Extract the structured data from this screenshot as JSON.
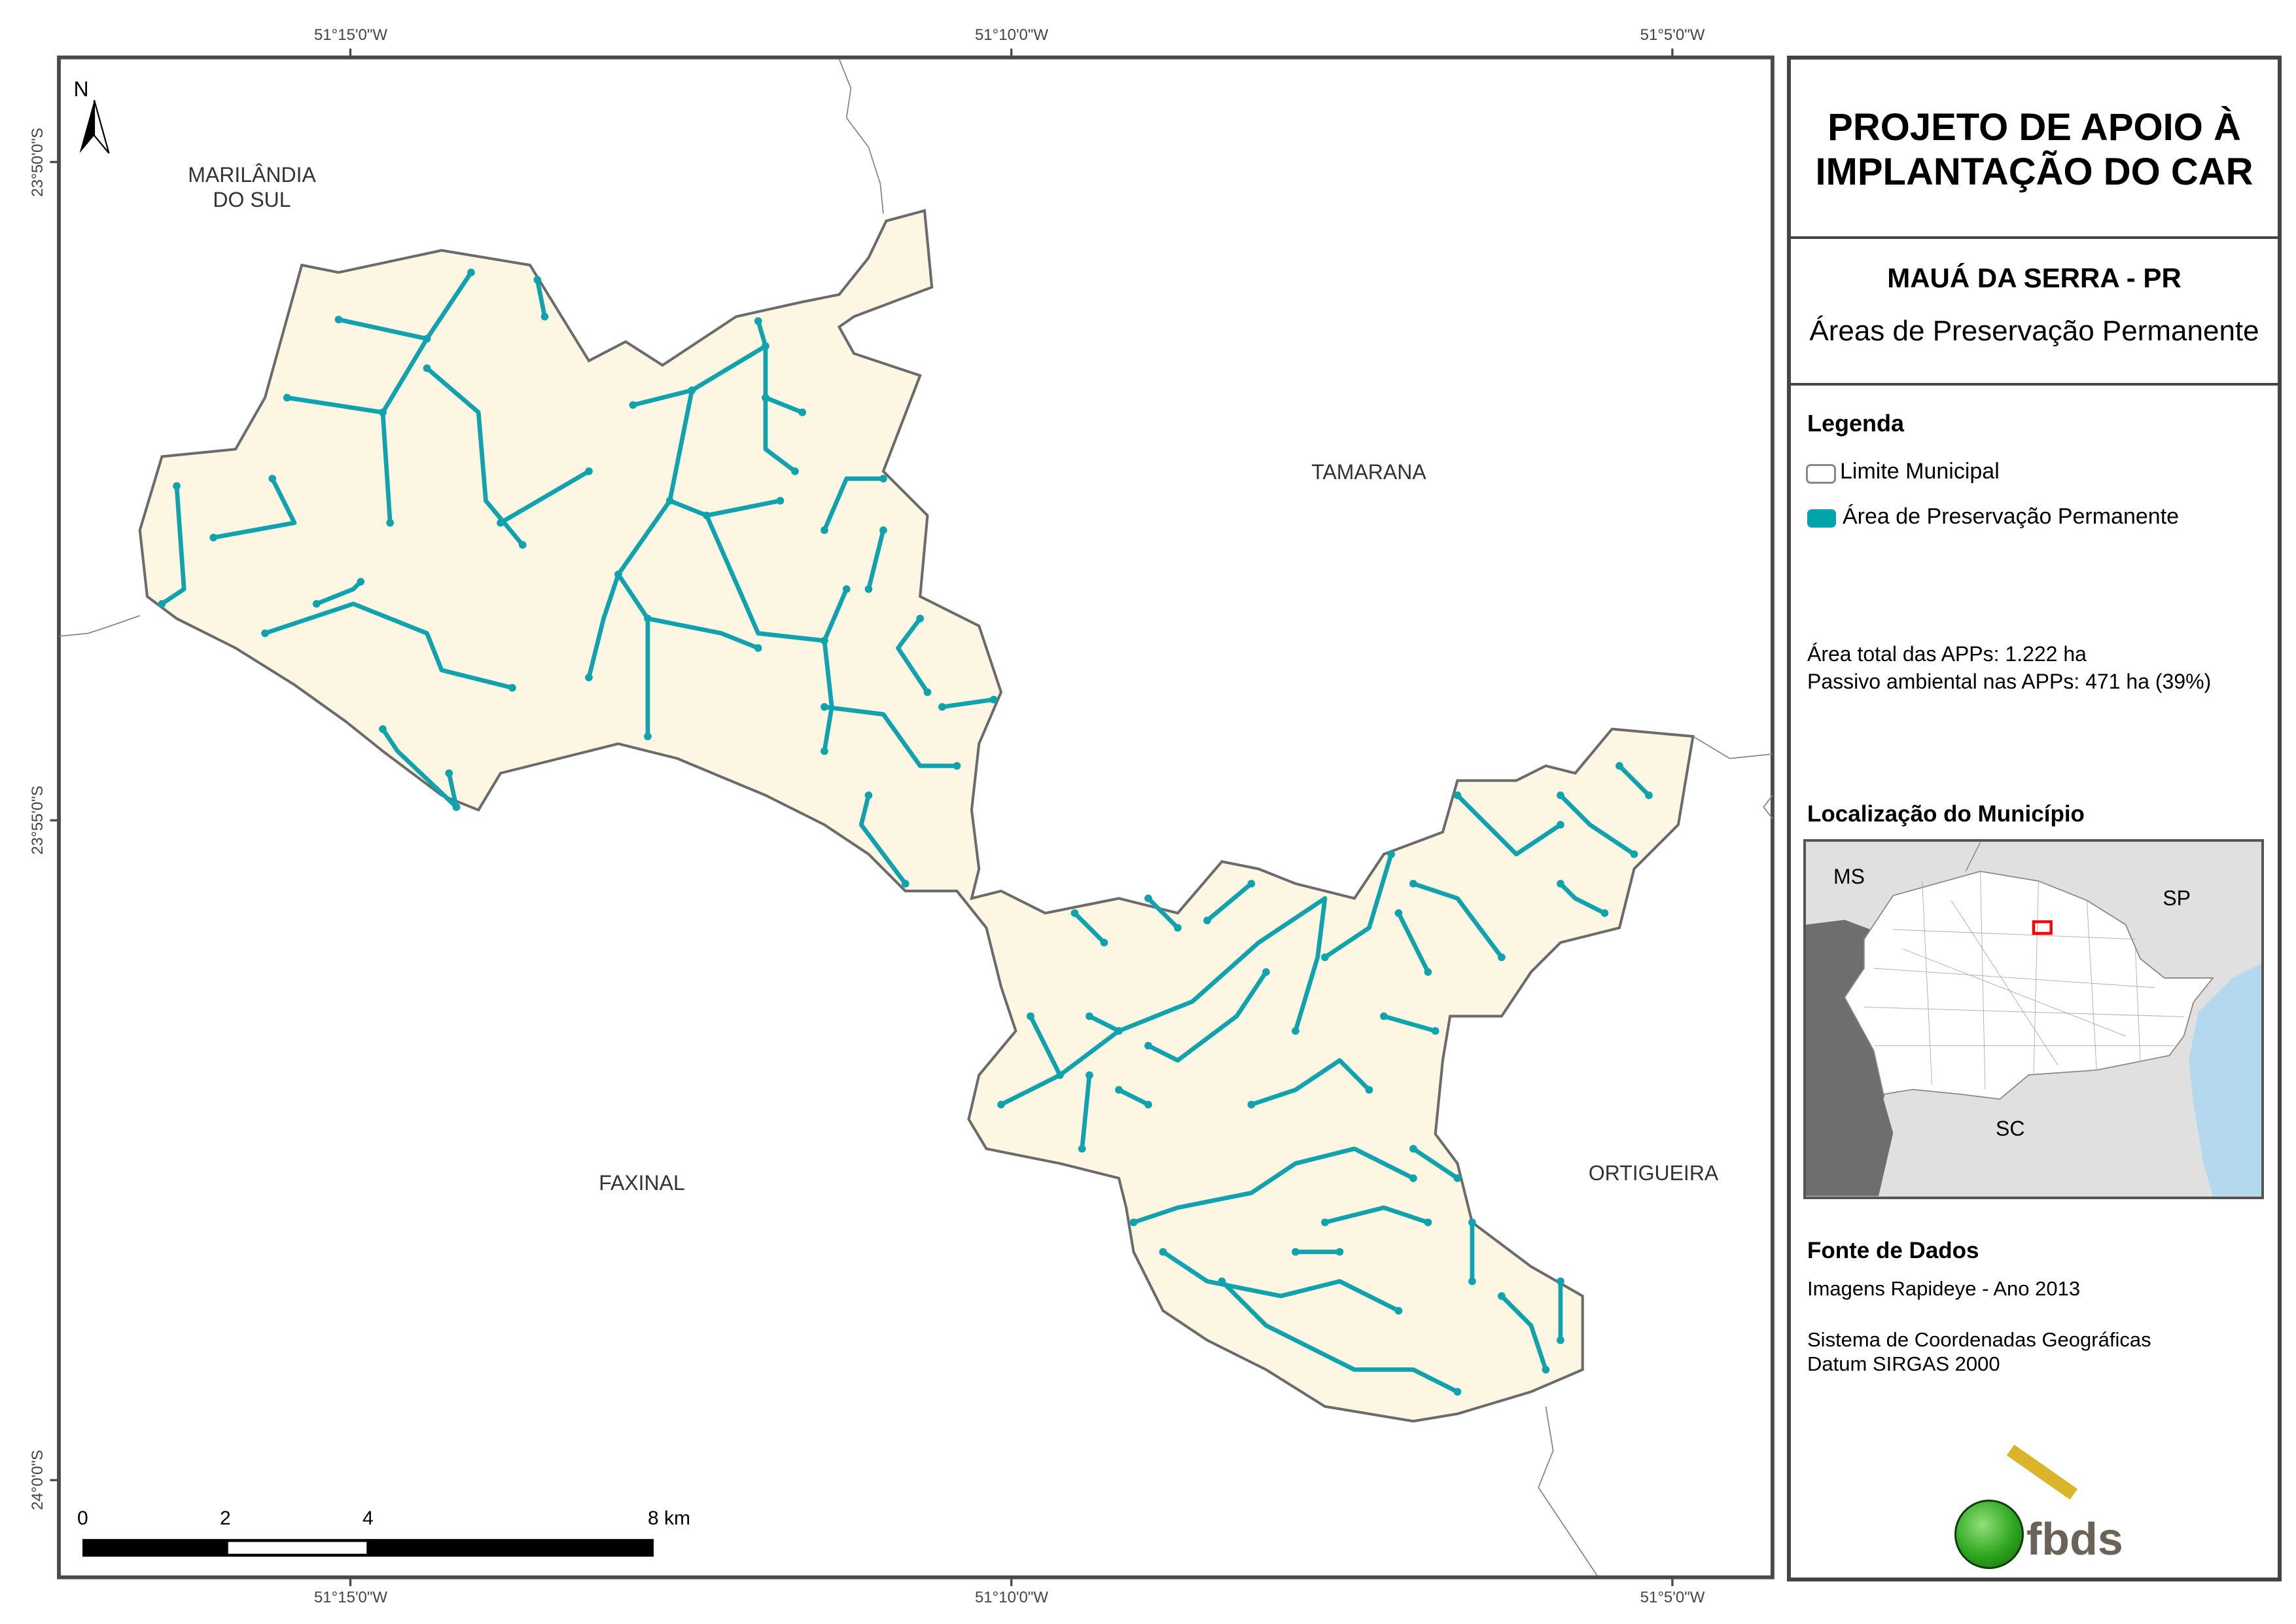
{
  "map": {
    "north_label": "N",
    "graticule": {
      "top": [
        "51°15'0\"W",
        "51°10'0\"W",
        "51°5'0\"W"
      ],
      "bottom": [
        "51°15'0\"W",
        "51°10'0\"W",
        "51°5'0\"W"
      ],
      "left": [
        "23°50'0\"S",
        "23°55'0\"S",
        "24°0'0\"S"
      ]
    },
    "places": {
      "marilandia_1": "MARILÂNDIA",
      "marilandia_2": "DO SUL",
      "tamarana": "TAMARANA",
      "faxinal": "FAXINAL",
      "ortigueira": "ORTIGUEIRA"
    },
    "scale_bar": {
      "labels": [
        "0",
        "2",
        "4",
        "8 km"
      ]
    },
    "colors": {
      "municipality_fill": "#fdf6e3",
      "boundary": "#6b6b6b",
      "app": "#10a3ad"
    }
  },
  "panel": {
    "title_line1": "PROJETO DE APOIO À",
    "title_line2": "IMPLANTAÇÃO DO CAR",
    "municipality": "MAUÁ DA SERRA - PR",
    "subtitle": "Áreas de Preservação Permanente",
    "legend": {
      "heading": "Legenda",
      "items": [
        {
          "label": "Limite Municipal",
          "color": "#ffffff"
        },
        {
          "label": "Área de Preservação Permanente",
          "color": "#00a5ac"
        }
      ]
    },
    "stats": {
      "total": "Área total das APPs: 1.222 ha",
      "passivo": "Passivo ambiental nas APPs: 471 ha (39%)"
    },
    "location": {
      "heading": "Localização do Município",
      "labels": [
        "MS",
        "SP",
        "SC"
      ],
      "highlight_color": "#ff0000"
    },
    "sources": {
      "heading": "Fonte de Dados",
      "line1": "Imagens Rapideye - Ano 2013",
      "line2": "Sistema de Coordenadas Geográficas",
      "line3": "Datum SIRGAS 2000"
    },
    "logo_text": "fbds"
  }
}
